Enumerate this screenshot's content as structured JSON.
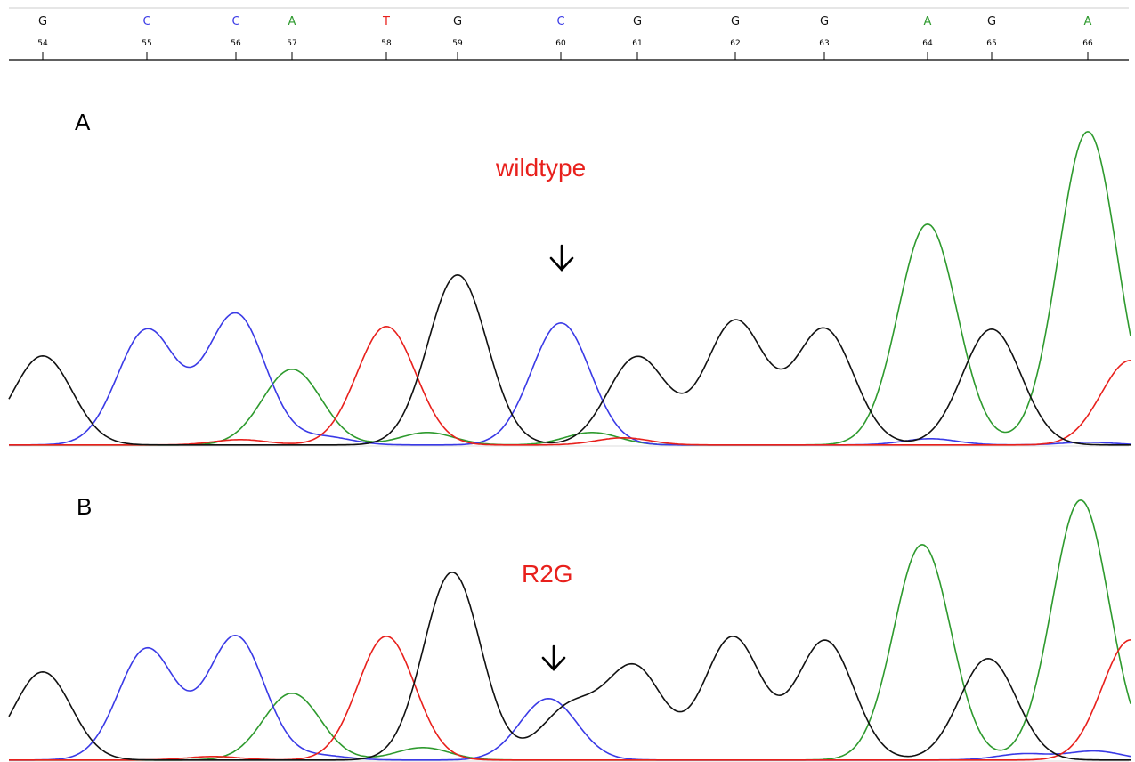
{
  "colors": {
    "A": "#2e9a2e",
    "C": "#3a3ae6",
    "G": "#111111",
    "T": "#e8201c"
  },
  "ruler": {
    "bases": [
      "G",
      "C",
      "C",
      "A",
      "T",
      "G",
      "C",
      "G",
      "G",
      "G",
      "A",
      "G",
      "A"
    ],
    "positions": [
      "54",
      "55",
      "56",
      "57",
      "58",
      "59",
      "60",
      "61",
      "62",
      "63",
      "64",
      "65",
      "66"
    ]
  },
  "chart_data": [
    {
      "type": "line",
      "panel": "A",
      "label": "wildtype",
      "arrow_position": "60",
      "peaks": [
        {
          "pos": "54",
          "base": "G",
          "height": 100
        },
        {
          "pos": "55",
          "base": "C",
          "height": 129
        },
        {
          "pos": "56",
          "base": "C",
          "height": 147
        },
        {
          "pos": "57",
          "base": "A",
          "height": 85
        },
        {
          "pos": "58",
          "base": "T",
          "height": 133
        },
        {
          "pos": "59",
          "base": "G",
          "height": 191
        },
        {
          "pos": "60",
          "base": "C",
          "height": 137
        },
        {
          "pos": "61",
          "base": "G",
          "height": 99
        },
        {
          "pos": "62",
          "base": "G",
          "height": 139
        },
        {
          "pos": "63",
          "base": "G",
          "height": 130
        },
        {
          "pos": "64",
          "base": "A",
          "height": 248
        },
        {
          "pos": "65",
          "base": "G",
          "height": 130
        },
        {
          "pos": "66",
          "base": "A",
          "height": 352
        }
      ]
    },
    {
      "type": "line",
      "panel": "B",
      "label": "R2G",
      "arrow_position": "60",
      "peaks": [
        {
          "pos": "54",
          "base": "G",
          "height": 99
        },
        {
          "pos": "55",
          "base": "C",
          "height": 125
        },
        {
          "pos": "56",
          "base": "C",
          "height": 139
        },
        {
          "pos": "57",
          "base": "A",
          "height": 75
        },
        {
          "pos": "58",
          "base": "T",
          "height": 139
        },
        {
          "pos": "59",
          "base": "G",
          "height": 211
        },
        {
          "pos": "60",
          "base": "C",
          "height": 69
        },
        {
          "pos": "60",
          "base": "G",
          "height": 58
        },
        {
          "pos": "61",
          "base": "G",
          "height": 103
        },
        {
          "pos": "62",
          "base": "G",
          "height": 138
        },
        {
          "pos": "63",
          "base": "G",
          "height": 134
        },
        {
          "pos": "64",
          "base": "A",
          "height": 242
        },
        {
          "pos": "65",
          "base": "G",
          "height": 114
        },
        {
          "pos": "66",
          "base": "A",
          "height": 292
        }
      ]
    }
  ]
}
